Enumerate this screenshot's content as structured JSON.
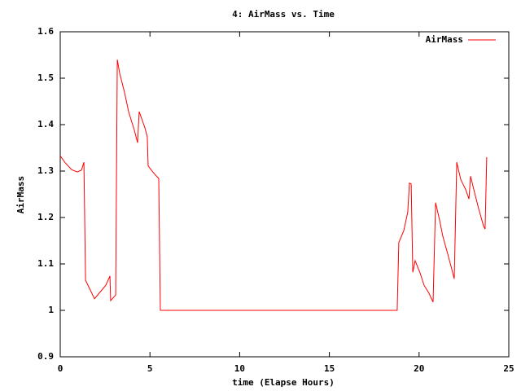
{
  "chart_data": {
    "type": "line",
    "title": "4: AirMass vs. Time",
    "x_label": "time (Elapse Hours)",
    "y_label": "AirMass",
    "legend_position": "upper right",
    "grid": false,
    "xlim": [
      0,
      25
    ],
    "xticks": [
      0,
      5,
      10,
      15,
      20,
      25
    ],
    "ylim": [
      0.9,
      1.6
    ],
    "yticks": [
      0.9,
      1,
      1.1,
      1.2,
      1.3,
      1.4,
      1.5,
      1.6
    ],
    "series": [
      {
        "name": "AirMass",
        "color": "#ff0000",
        "x": [
          0,
          0.27,
          0.64,
          0.95,
          1.18,
          1.32,
          1.41,
          1.91,
          2.54,
          2.77,
          2.81,
          3.09,
          3.18,
          3.31,
          3.58,
          3.81,
          4.13,
          4.31,
          4.4,
          4.72,
          4.85,
          4.9,
          5.22,
          5.49,
          5.58,
          18.78,
          18.87,
          19.15,
          19.37,
          19.46,
          19.56,
          19.65,
          19.78,
          20.05,
          20.28,
          20.55,
          20.78,
          20.92,
          21.14,
          21.32,
          21.6,
          21.82,
          21.96,
          22.1,
          22.32,
          22.6,
          22.78,
          22.87,
          23.09,
          23.32,
          23.59,
          23.68,
          23.77
        ],
        "values": [
          1.333,
          1.318,
          1.303,
          1.298,
          1.302,
          1.319,
          1.065,
          1.025,
          1.054,
          1.074,
          1.021,
          1.033,
          1.54,
          1.511,
          1.47,
          1.428,
          1.388,
          1.361,
          1.428,
          1.393,
          1.374,
          1.311,
          1.295,
          1.284,
          1.0,
          1.0,
          1.146,
          1.172,
          1.212,
          1.274,
          1.272,
          1.082,
          1.107,
          1.081,
          1.054,
          1.037,
          1.018,
          1.232,
          1.195,
          1.16,
          1.121,
          1.089,
          1.068,
          1.319,
          1.282,
          1.26,
          1.24,
          1.289,
          1.254,
          1.219,
          1.182,
          1.175,
          1.33
        ]
      }
    ]
  }
}
